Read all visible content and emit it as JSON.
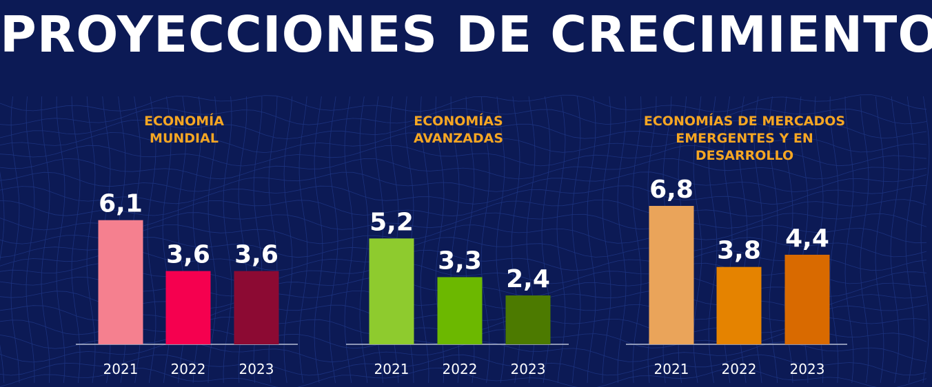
{
  "title": "PROYECCIONES DE CRECIMIENTO",
  "colors": {
    "background": "#0c1a55",
    "title": "#ffffff",
    "panel_title": "#f5a623",
    "value_label": "#ffffff",
    "tick_label": "#ffffff",
    "baseline": "#b8bfd6"
  },
  "chart_data": [
    {
      "type": "bar",
      "title": "ECONOMÍA MUNDIAL",
      "title_lines": [
        "ECONOMÍA",
        "MUNDIAL"
      ],
      "categories": [
        "2021",
        "2022",
        "2023"
      ],
      "values": [
        6.1,
        3.6,
        3.6
      ],
      "value_labels": [
        "6,1",
        "3,6",
        "3,6"
      ],
      "bar_colors": [
        "#f5808f",
        "#f5004f",
        "#8c0a33"
      ],
      "ylim": [
        0,
        6.8
      ]
    },
    {
      "type": "bar",
      "title": "ECONOMÍAS AVANZADAS",
      "title_lines": [
        "ECONOMÍAS",
        "AVANZADAS"
      ],
      "categories": [
        "2021",
        "2022",
        "2023"
      ],
      "values": [
        5.2,
        3.3,
        2.4
      ],
      "value_labels": [
        "5,2",
        "3,3",
        "2,4"
      ],
      "bar_colors": [
        "#8ecb2e",
        "#6cb800",
        "#4c7a00"
      ],
      "ylim": [
        0,
        6.8
      ]
    },
    {
      "type": "bar",
      "title": "ECONOMÍAS DE MERCADOS EMERGENTES Y EN DESARROLLO",
      "title_lines": [
        "ECONOMÍAS DE MERCADOS",
        "EMERGENTES Y EN",
        "DESARROLLO"
      ],
      "categories": [
        "2021",
        "2022",
        "2023"
      ],
      "values": [
        6.8,
        3.8,
        4.4
      ],
      "value_labels": [
        "6,8",
        "3,8",
        "4,4"
      ],
      "bar_colors": [
        "#eaa45a",
        "#e58300",
        "#d96a00"
      ],
      "ylim": [
        0,
        6.8
      ]
    }
  ]
}
